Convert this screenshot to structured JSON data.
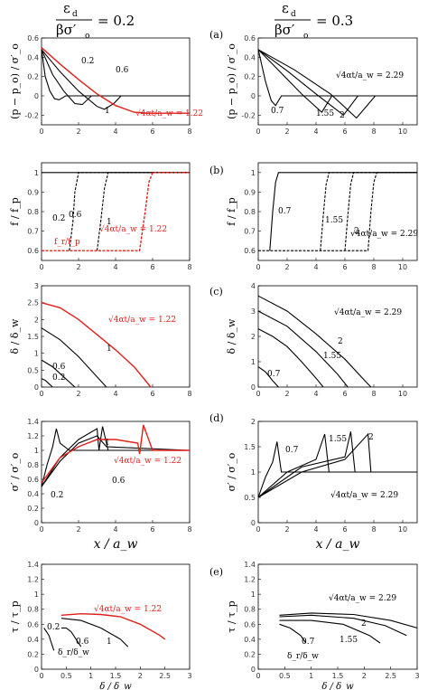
{
  "column_headers": {
    "left": "ε_d / βσ′_o = 0.2",
    "right": "ε_d / βσ′_o = 0.3"
  },
  "panel_letters": [
    "(a)",
    "(b)",
    "(c)",
    "(d)",
    "(e)"
  ],
  "colors": {
    "base": "#000000",
    "highlight": "#e0201b"
  },
  "chart_data": [
    {
      "id": "a-left",
      "type": "line",
      "panel": "(a)",
      "column": "left",
      "xlim": [
        0,
        8
      ],
      "ylim": [
        -0.3,
        0.6
      ],
      "xticks": [
        0,
        2,
        4,
        6,
        8
      ],
      "yticks": [
        -0.2,
        0.0,
        0.2,
        0.4,
        0.6
      ],
      "ylabel": "(p − p_o) / σ′_o",
      "series": [
        {
          "name": "0.2",
          "color": "#000000",
          "x": [
            0,
            0.2,
            0.45,
            0.7,
            0.95,
            1.3,
            8
          ],
          "y": [
            0.48,
            0.2,
            0.05,
            -0.03,
            -0.04,
            0,
            0
          ]
        },
        {
          "name": "0.6",
          "color": "#000000",
          "x": [
            0,
            0.6,
            1.2,
            1.8,
            2.2,
            2.7,
            8
          ],
          "y": [
            0.48,
            0.22,
            0.05,
            -0.08,
            -0.09,
            0,
            0
          ]
        },
        {
          "name": "1",
          "color": "#000000",
          "x": [
            0,
            1,
            2,
            3,
            3.4,
            3.9,
            4.3,
            8
          ],
          "y": [
            0.48,
            0.25,
            0.05,
            -0.11,
            -0.14,
            -0.08,
            0,
            0
          ]
        },
        {
          "name": "√4αt/a_w = 1.22",
          "color": "#e0201b",
          "x": [
            0,
            1,
            2,
            3,
            4,
            5,
            5.7,
            6.1,
            8
          ],
          "y": [
            0.5,
            0.33,
            0.17,
            0.02,
            -0.1,
            -0.17,
            -0.18,
            -0.18,
            -0.18
          ]
        }
      ],
      "labels": [
        "0.2",
        "0.6",
        "1",
        "√4αt/a_w = 1.22"
      ]
    },
    {
      "id": "a-right",
      "type": "line",
      "panel": "(a)",
      "column": "right",
      "xlim": [
        0,
        11
      ],
      "ylim": [
        -0.3,
        0.6
      ],
      "xticks": [
        0,
        2,
        4,
        6,
        8,
        10
      ],
      "yticks": [
        -0.2,
        0.0,
        0.2,
        0.4,
        0.6
      ],
      "ylabel": "(p − p_o) / σ′_o",
      "series": [
        {
          "name": "0.7",
          "color": "#000000",
          "x": [
            0,
            0.5,
            0.9,
            1.2,
            1.6,
            11
          ],
          "y": [
            0.48,
            0.15,
            -0.05,
            -0.1,
            0,
            0
          ]
        },
        {
          "name": "1.55",
          "color": "#000000",
          "x": [
            0,
            1.5,
            3,
            4.4,
            5.1,
            11
          ],
          "y": [
            0.48,
            0.25,
            0.02,
            -0.17,
            0,
            0
          ]
        },
        {
          "name": "2",
          "color": "#000000",
          "x": [
            0,
            2,
            4,
            5.9,
            6.9,
            11
          ],
          "y": [
            0.48,
            0.26,
            0.02,
            -0.2,
            0,
            0
          ]
        },
        {
          "name": "√4αt/a_w = 2.29",
          "color": "#000000",
          "x": [
            0,
            2.5,
            5,
            6.8,
            8.1,
            11
          ],
          "y": [
            0.48,
            0.27,
            0.02,
            -0.23,
            0,
            0
          ]
        }
      ],
      "labels": [
        "0.7",
        "1.55",
        "2",
        "√4αt/a_w = 2.29"
      ]
    },
    {
      "id": "b-left",
      "type": "line",
      "panel": "(b)",
      "column": "left",
      "xlim": [
        0,
        8
      ],
      "ylim": [
        0.55,
        1.05
      ],
      "xticks": [
        0,
        2,
        4,
        6,
        8
      ],
      "yticks": [
        0.6,
        0.7,
        0.8,
        0.9,
        1.0
      ],
      "ylabel": "f / f_p",
      "series": [
        {
          "name": "0.2",
          "color": "#000000",
          "x": [
            0,
            0.3,
            0.35,
            8
          ],
          "y": [
            1,
            1,
            1,
            1
          ]
        },
        {
          "name": "0.6",
          "color": "#000000",
          "x": [
            1.5,
            1.7,
            1.8,
            2.0,
            8
          ],
          "y": [
            0.6,
            0.75,
            0.9,
            1,
            1
          ]
        },
        {
          "name": "1",
          "color": "#000000",
          "x": [
            3.0,
            3.2,
            3.4,
            3.6,
            8
          ],
          "y": [
            0.6,
            0.75,
            0.92,
            1,
            1
          ]
        },
        {
          "name": "√4αt/a_w = 1.22",
          "color": "#e0201b",
          "x": [
            0,
            5.3,
            5.3,
            5.6,
            5.8,
            6.0,
            8
          ],
          "y": [
            0.6,
            0.6,
            0.6,
            0.8,
            0.95,
            1,
            1
          ]
        }
      ],
      "labels": [
        "0.2",
        "0.6",
        "1",
        "√4αt/a_w = 1.22",
        "f_r/f_p"
      ]
    },
    {
      "id": "b-right",
      "type": "line",
      "panel": "(b)",
      "column": "right",
      "xlim": [
        0,
        11
      ],
      "ylim": [
        0.55,
        1.05
      ],
      "xticks": [
        0,
        2,
        4,
        6,
        8,
        10
      ],
      "yticks": [
        0.6,
        0.7,
        0.8,
        0.9,
        1.0
      ],
      "ylabel": "f / f_p",
      "series": [
        {
          "name": "0.7",
          "color": "#000000",
          "x": [
            0.8,
            1.0,
            1.2,
            1.4,
            11
          ],
          "y": [
            0.6,
            0.8,
            0.95,
            1,
            1
          ]
        },
        {
          "name": "1.55",
          "color": "#000000",
          "x": [
            4.3,
            4.5,
            4.7,
            4.9,
            11
          ],
          "y": [
            0.6,
            0.78,
            0.94,
            1,
            1
          ]
        },
        {
          "name": "2",
          "color": "#000000",
          "x": [
            6.0,
            6.2,
            6.4,
            6.6,
            11
          ],
          "y": [
            0.6,
            0.78,
            0.94,
            1,
            1
          ]
        },
        {
          "name": "√4αt/a_w = 2.29",
          "color": "#000000",
          "x": [
            0,
            7.6,
            7.8,
            8.0,
            8.2,
            11
          ],
          "y": [
            0.6,
            0.6,
            0.8,
            0.95,
            1,
            1
          ]
        }
      ],
      "labels": [
        "0.7",
        "1.55",
        "2",
        "√4αt/a_w = 2.29"
      ]
    },
    {
      "id": "c-left",
      "type": "line",
      "panel": "(c)",
      "column": "left",
      "xlim": [
        0,
        8
      ],
      "ylim": [
        0,
        3.0
      ],
      "xticks": [
        0,
        2,
        4,
        6,
        8
      ],
      "yticks": [
        0.0,
        0.5,
        1.0,
        1.5,
        2.0,
        2.5,
        3.0
      ],
      "ylabel": "δ / δ_w",
      "series": [
        {
          "name": "0.2",
          "color": "#000000",
          "x": [
            0,
            0.2,
            0.4,
            0.6
          ],
          "y": [
            0.25,
            0.2,
            0.1,
            0
          ]
        },
        {
          "name": "0.6",
          "color": "#000000",
          "x": [
            0,
            0.6,
            1.2,
            1.8
          ],
          "y": [
            0.8,
            0.6,
            0.3,
            0
          ]
        },
        {
          "name": "1",
          "color": "#000000",
          "x": [
            0,
            1,
            2,
            3,
            3.5
          ],
          "y": [
            1.75,
            1.4,
            0.9,
            0.3,
            0
          ]
        },
        {
          "name": "√4αt/a_w = 1.22",
          "color": "#e0201b",
          "x": [
            0,
            1,
            2,
            3,
            4,
            5,
            5.6,
            5.9
          ],
          "y": [
            2.5,
            2.35,
            2.0,
            1.55,
            1.1,
            0.6,
            0.2,
            0
          ]
        }
      ],
      "labels": [
        "0.2",
        "0.6",
        "1",
        "√4αt/a_w = 1.22"
      ]
    },
    {
      "id": "c-right",
      "type": "line",
      "panel": "(c)",
      "column": "right",
      "xlim": [
        0,
        11
      ],
      "ylim": [
        0,
        4.0
      ],
      "xticks": [
        0,
        2,
        4,
        6,
        8,
        10
      ],
      "yticks": [
        0,
        1,
        2,
        3,
        4
      ],
      "ylabel": "δ / δ_w",
      "series": [
        {
          "name": "0.7",
          "color": "#000000",
          "x": [
            0,
            0.5,
            1.0,
            1.4
          ],
          "y": [
            0.8,
            0.6,
            0.25,
            0
          ]
        },
        {
          "name": "1.55",
          "color": "#000000",
          "x": [
            0,
            1,
            2,
            3,
            4,
            4.5
          ],
          "y": [
            2.3,
            2.0,
            1.6,
            1.0,
            0.35,
            0
          ]
        },
        {
          "name": "2",
          "color": "#000000",
          "x": [
            0,
            2,
            4,
            5.5,
            6.2
          ],
          "y": [
            3.0,
            2.4,
            1.4,
            0.5,
            0
          ]
        },
        {
          "name": "√4αt/a_w = 2.29",
          "color": "#000000",
          "x": [
            0,
            2,
            4,
            6,
            7.3,
            7.8
          ],
          "y": [
            3.6,
            3.0,
            2.1,
            1.1,
            0.3,
            0
          ]
        }
      ],
      "labels": [
        "0.7",
        "1.55",
        "2",
        "√4αt/a_w = 2.29"
      ]
    },
    {
      "id": "d-left",
      "type": "line",
      "panel": "(d)",
      "column": "left",
      "xlim": [
        0,
        8
      ],
      "ylim": [
        0,
        1.4
      ],
      "xticks": [
        0,
        2,
        4,
        6,
        8
      ],
      "yticks": [
        0.0,
        0.2,
        0.4,
        0.6,
        0.8,
        1.0,
        1.2,
        1.4
      ],
      "ylabel": "σ′ / σ′_o",
      "xlabel": "x / a_w",
      "series": [
        {
          "name": "0.2",
          "color": "#000000",
          "x": [
            0,
            0.3,
            0.6,
            0.8,
            1.0,
            1.5,
            8
          ],
          "y": [
            0.5,
            0.8,
            1.05,
            1.3,
            1.1,
            1.0,
            1.0
          ]
        },
        {
          "name": "0.6",
          "color": "#000000",
          "x": [
            0,
            1,
            2,
            3,
            3.5,
            8
          ],
          "y": [
            0.5,
            0.85,
            1.1,
            1.2,
            1.05,
            1.0
          ]
        },
        {
          "name": "1",
          "color": "#000000",
          "x": [
            0,
            1,
            2,
            3,
            3.1,
            3.3,
            3.6,
            8
          ],
          "y": [
            0.5,
            0.9,
            1.15,
            1.3,
            1.0,
            1.33,
            1.0,
            1.0
          ]
        },
        {
          "name": "√4αt/a_w = 1.22",
          "color": "#e0201b",
          "x": [
            0,
            1,
            2,
            3,
            4,
            5.2,
            5.3,
            5.5,
            6.0,
            8
          ],
          "y": [
            0.55,
            0.9,
            1.05,
            1.15,
            1.15,
            1.1,
            0.95,
            1.35,
            1.0,
            1.0
          ]
        }
      ],
      "labels": [
        "0.2",
        "0.6",
        "1",
        "√4αt/a_w = 1.22"
      ]
    },
    {
      "id": "d-right",
      "type": "line",
      "panel": "(d)",
      "column": "right",
      "xlim": [
        0,
        11
      ],
      "ylim": [
        0,
        2.0
      ],
      "xticks": [
        0,
        2,
        4,
        6,
        8,
        10
      ],
      "yticks": [
        0.0,
        0.5,
        1.0,
        1.5,
        2.0
      ],
      "ylabel": "σ′ / σ′_o",
      "xlabel": "x / a_w",
      "series": [
        {
          "name": "0.7",
          "color": "#000000",
          "x": [
            0,
            0.5,
            1.0,
            1.3,
            1.6,
            11
          ],
          "y": [
            0.5,
            0.9,
            1.2,
            1.6,
            1.0,
            1.0
          ]
        },
        {
          "name": "1.55",
          "color": "#000000",
          "x": [
            0,
            2,
            4,
            4.6,
            4.9,
            11
          ],
          "y": [
            0.5,
            1.0,
            1.25,
            1.75,
            1.0,
            1.0
          ]
        },
        {
          "name": "2",
          "color": "#000000",
          "x": [
            0,
            3,
            6,
            6.4,
            6.7,
            11
          ],
          "y": [
            0.5,
            1.1,
            1.3,
            1.8,
            1.0,
            1.0
          ]
        },
        {
          "name": "√4αt/a_w = 2.29",
          "color": "#000000",
          "x": [
            0,
            3,
            6,
            7.6,
            7.8,
            11
          ],
          "y": [
            0.5,
            1.0,
            1.25,
            1.75,
            1.0,
            1.0
          ]
        }
      ],
      "labels": [
        "0.7",
        "1.55",
        "2",
        "√4αt/a_w = 2.29"
      ]
    },
    {
      "id": "e-left",
      "type": "line",
      "panel": "(e)",
      "column": "left",
      "xlim": [
        0,
        3.0
      ],
      "ylim": [
        0,
        1.4
      ],
      "xticks": [
        0.0,
        0.5,
        1.0,
        1.5,
        2.0,
        2.5,
        3.0
      ],
      "yticks": [
        0.0,
        0.2,
        0.4,
        0.6,
        0.8,
        1.0,
        1.2,
        1.4
      ],
      "ylabel": "τ / τ_p",
      "xlabel": "δ / δ_w",
      "series": [
        {
          "name": "0.2",
          "color": "#000000",
          "x": [
            0.05,
            0.1,
            0.15,
            0.2,
            0.25
          ],
          "y": [
            0.55,
            0.5,
            0.45,
            0.35,
            0.25
          ]
        },
        {
          "name": "0.6",
          "color": "#000000",
          "x": [
            0.4,
            0.5,
            0.6,
            0.7,
            0.8
          ],
          "y": [
            0.55,
            0.55,
            0.5,
            0.4,
            0.3
          ]
        },
        {
          "name": "1",
          "color": "#000000",
          "x": [
            0.4,
            0.8,
            1.2,
            1.6,
            1.75
          ],
          "y": [
            0.68,
            0.65,
            0.55,
            0.4,
            0.3
          ]
        },
        {
          "name": "√4αt/a_w = 1.22",
          "color": "#e0201b",
          "x": [
            0.4,
            0.8,
            1.2,
            1.6,
            2.0,
            2.4,
            2.5
          ],
          "y": [
            0.72,
            0.74,
            0.73,
            0.7,
            0.6,
            0.45,
            0.4
          ]
        }
      ],
      "labels": [
        "0.2",
        "0.6",
        "1",
        "√4αt/a_w = 1.22",
        "δ_r/δ_w"
      ]
    },
    {
      "id": "e-right",
      "type": "line",
      "panel": "(e)",
      "column": "right",
      "xlim": [
        0,
        3.0
      ],
      "ylim": [
        0,
        1.4
      ],
      "xticks": [
        0.0,
        0.5,
        1.0,
        1.5,
        2.0,
        2.5,
        3.0
      ],
      "yticks": [
        0.0,
        0.2,
        0.4,
        0.6,
        0.8,
        1.0,
        1.2,
        1.4
      ],
      "ylabel": "τ / τ_p",
      "xlabel": "δ / δ_w",
      "series": [
        {
          "name": "0.7",
          "color": "#000000",
          "x": [
            0.4,
            0.6,
            0.8,
            0.9
          ],
          "y": [
            0.6,
            0.55,
            0.45,
            0.35
          ]
        },
        {
          "name": "1.55",
          "color": "#000000",
          "x": [
            0.4,
            1.0,
            1.6,
            2.1,
            2.3
          ],
          "y": [
            0.65,
            0.65,
            0.6,
            0.45,
            0.35
          ]
        },
        {
          "name": "2",
          "color": "#000000",
          "x": [
            0.4,
            1.0,
            1.8,
            2.4,
            2.8
          ],
          "y": [
            0.7,
            0.72,
            0.68,
            0.58,
            0.45
          ]
        },
        {
          "name": "√4αt/a_w = 2.29",
          "color": "#000000",
          "x": [
            0.4,
            1.0,
            1.8,
            2.5,
            3.0
          ],
          "y": [
            0.72,
            0.75,
            0.73,
            0.65,
            0.55
          ]
        }
      ],
      "labels": [
        "0.7",
        "1.55",
        "2",
        "√4αt/a_w = 2.29",
        "δ_r/δ_w"
      ]
    }
  ]
}
